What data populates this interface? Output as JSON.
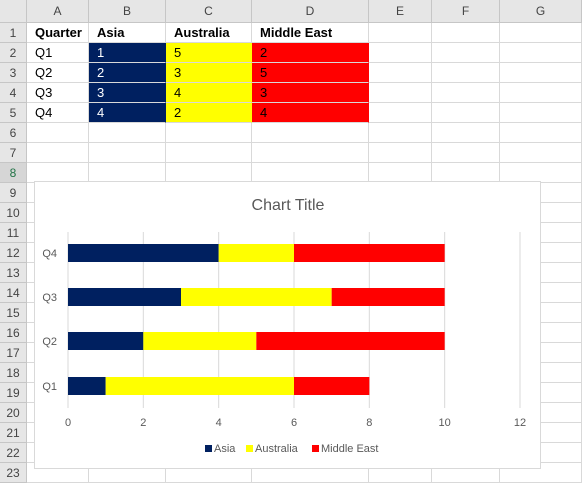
{
  "columns": [
    "A",
    "B",
    "C",
    "D",
    "E",
    "F",
    "G"
  ],
  "rows": [
    "1",
    "2",
    "3",
    "4",
    "5",
    "6",
    "7",
    "8",
    "9",
    "10",
    "11",
    "12",
    "13",
    "14",
    "15",
    "16",
    "17",
    "18",
    "19",
    "20",
    "21",
    "22",
    "23"
  ],
  "selected_row": "8",
  "table": {
    "headers": [
      "Quarter",
      "Asia",
      "Australia",
      "Middle East"
    ],
    "rows": [
      [
        "Q1",
        "1",
        "5",
        "2"
      ],
      [
        "Q2",
        "2",
        "3",
        "5"
      ],
      [
        "Q3",
        "3",
        "4",
        "3"
      ],
      [
        "Q4",
        "4",
        "2",
        "4"
      ]
    ]
  },
  "colors": {
    "asia": "#002060",
    "australia": "#ffff00",
    "middle_east": "#ff0000",
    "grid": "#d9d9d9"
  },
  "chart_data": {
    "type": "bar",
    "orientation": "horizontal",
    "stacked": true,
    "title": "Chart Title",
    "categories": [
      "Q1",
      "Q2",
      "Q3",
      "Q4"
    ],
    "series": [
      {
        "name": "Asia",
        "values": [
          1,
          2,
          3,
          4
        ],
        "color": "#002060"
      },
      {
        "name": "Australia",
        "values": [
          5,
          3,
          4,
          2
        ],
        "color": "#ffff00"
      },
      {
        "name": "Middle East",
        "values": [
          2,
          5,
          3,
          4
        ],
        "color": "#ff0000"
      }
    ],
    "xlim": [
      0,
      12
    ],
    "xticks": [
      "0",
      "2",
      "4",
      "6",
      "8",
      "10",
      "12"
    ],
    "grid": true,
    "legend": "bottom"
  }
}
